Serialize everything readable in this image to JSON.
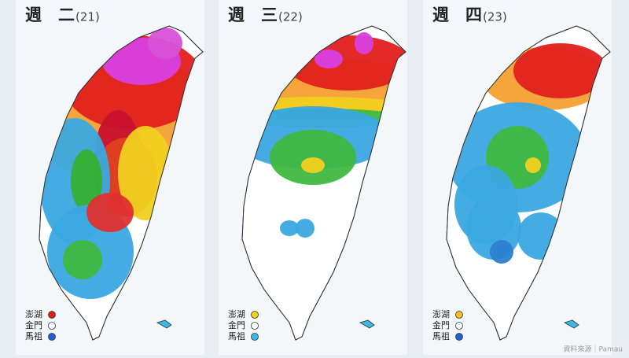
{
  "source": "資料來源｜Pamau",
  "panels": [
    {
      "day": "週　二",
      "date": "(21)",
      "legend": [
        {
          "name": "澎湖",
          "color": "#e02020"
        },
        {
          "name": "金門",
          "color": "#ffffff"
        },
        {
          "name": "馬祖",
          "color": "#2060d0"
        }
      ]
    },
    {
      "day": "週　三",
      "date": "(22)",
      "legend": [
        {
          "name": "澎湖",
          "color": "#f2d21a"
        },
        {
          "name": "金門",
          "color": "#ffffff"
        },
        {
          "name": "馬祖",
          "color": "#38b8e8"
        }
      ]
    },
    {
      "day": "週　四",
      "date": "(23)",
      "legend": [
        {
          "name": "澎湖",
          "color": "#f2c21a"
        },
        {
          "name": "金門",
          "color": "#ffffff"
        },
        {
          "name": "馬祖",
          "color": "#2060d0"
        }
      ]
    }
  ]
}
